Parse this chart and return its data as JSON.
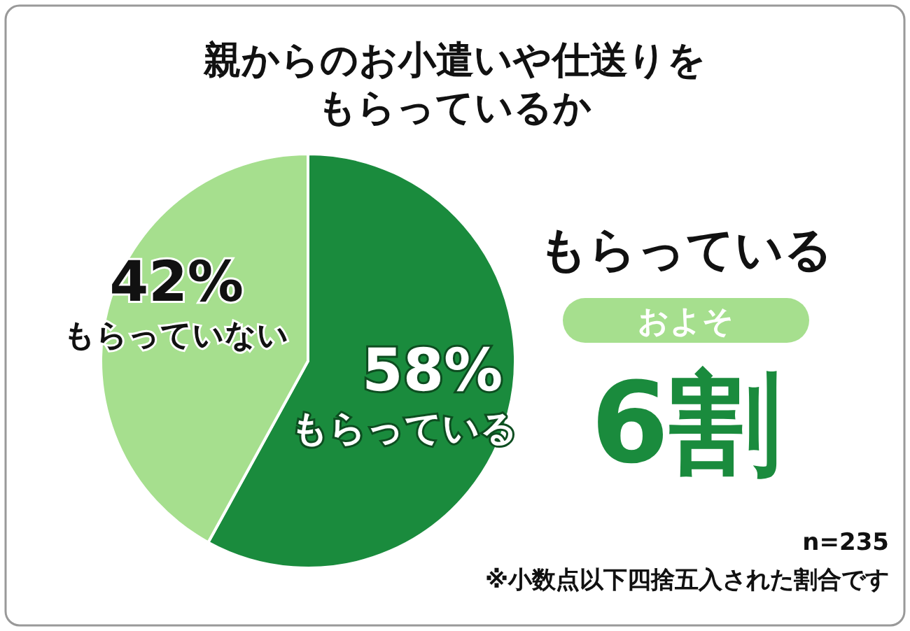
{
  "chart_data": {
    "type": "pie",
    "title": "親からのお小遣いや仕送りをもらっているか",
    "categories": [
      "もらっている",
      "もらっていない"
    ],
    "values": [
      58,
      42
    ],
    "value_labels": [
      "58%",
      "42%"
    ],
    "colors": [
      "#1a8b3d",
      "#a6df8e"
    ],
    "annotations": [
      "もらっている",
      "およそ",
      "6割",
      "n=235",
      "※小数点以下四捨五入された割合です"
    ]
  }
}
